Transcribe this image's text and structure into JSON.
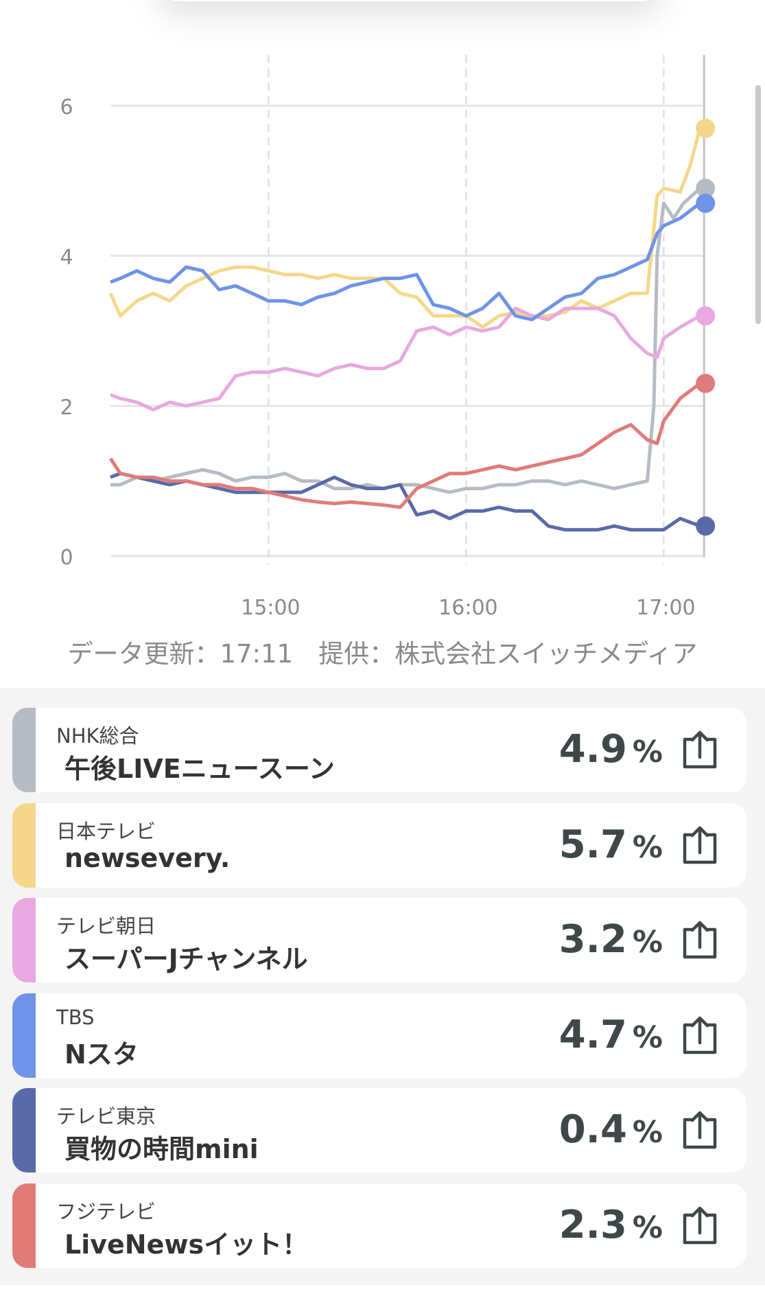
{
  "chart_data": {
    "type": "line",
    "xlabel": "",
    "ylabel": "",
    "ylim": [
      0,
      6
    ],
    "yticks": [
      "0",
      "2",
      "4",
      "6"
    ],
    "xticks": [
      "15:00",
      "16:00",
      "17:00"
    ],
    "xrange": [
      "14:12",
      "17:11"
    ],
    "grid": true,
    "series": [
      {
        "name": "NHK総合",
        "color": "#b7bbc3",
        "points": [
          [
            "14:12",
            0.95
          ],
          [
            "14:15",
            0.95
          ],
          [
            "14:20",
            1.05
          ],
          [
            "14:25",
            1.0
          ],
          [
            "14:30",
            1.05
          ],
          [
            "14:35",
            1.1
          ],
          [
            "14:40",
            1.15
          ],
          [
            "14:45",
            1.1
          ],
          [
            "14:50",
            1.0
          ],
          [
            "14:55",
            1.05
          ],
          [
            "15:00",
            1.05
          ],
          [
            "15:05",
            1.1
          ],
          [
            "15:10",
            1.0
          ],
          [
            "15:15",
            1.0
          ],
          [
            "15:20",
            0.9
          ],
          [
            "15:25",
            0.9
          ],
          [
            "15:30",
            0.95
          ],
          [
            "15:35",
            0.9
          ],
          [
            "15:40",
            0.95
          ],
          [
            "15:45",
            0.95
          ],
          [
            "15:50",
            0.9
          ],
          [
            "15:55",
            0.85
          ],
          [
            "16:00",
            0.9
          ],
          [
            "16:05",
            0.9
          ],
          [
            "16:10",
            0.95
          ],
          [
            "16:15",
            0.95
          ],
          [
            "16:20",
            1.0
          ],
          [
            "16:25",
            1.0
          ],
          [
            "16:30",
            0.95
          ],
          [
            "16:35",
            1.0
          ],
          [
            "16:40",
            0.95
          ],
          [
            "16:45",
            0.9
          ],
          [
            "16:50",
            0.95
          ],
          [
            "16:55",
            1.0
          ],
          [
            "16:57",
            2.0
          ],
          [
            "16:58",
            4.0
          ],
          [
            "17:00",
            4.7
          ],
          [
            "17:03",
            4.5
          ],
          [
            "17:06",
            4.7
          ],
          [
            "17:11",
            4.9
          ]
        ]
      },
      {
        "name": "日本テレビ",
        "color": "#f5d789",
        "points": [
          [
            "14:12",
            3.5
          ],
          [
            "14:15",
            3.2
          ],
          [
            "14:20",
            3.4
          ],
          [
            "14:25",
            3.5
          ],
          [
            "14:30",
            3.4
          ],
          [
            "14:35",
            3.6
          ],
          [
            "14:40",
            3.7
          ],
          [
            "14:45",
            3.8
          ],
          [
            "14:50",
            3.85
          ],
          [
            "14:55",
            3.85
          ],
          [
            "15:00",
            3.8
          ],
          [
            "15:05",
            3.75
          ],
          [
            "15:10",
            3.75
          ],
          [
            "15:15",
            3.7
          ],
          [
            "15:20",
            3.75
          ],
          [
            "15:25",
            3.7
          ],
          [
            "15:30",
            3.7
          ],
          [
            "15:35",
            3.7
          ],
          [
            "15:40",
            3.5
          ],
          [
            "15:45",
            3.45
          ],
          [
            "15:50",
            3.2
          ],
          [
            "15:55",
            3.2
          ],
          [
            "16:00",
            3.2
          ],
          [
            "16:05",
            3.05
          ],
          [
            "16:10",
            3.2
          ],
          [
            "16:15",
            3.25
          ],
          [
            "16:20",
            3.2
          ],
          [
            "16:25",
            3.2
          ],
          [
            "16:30",
            3.25
          ],
          [
            "16:35",
            3.4
          ],
          [
            "16:40",
            3.3
          ],
          [
            "16:45",
            3.4
          ],
          [
            "16:50",
            3.5
          ],
          [
            "16:55",
            3.5
          ],
          [
            "16:58",
            4.8
          ],
          [
            "17:00",
            4.9
          ],
          [
            "17:05",
            4.85
          ],
          [
            "17:08",
            5.2
          ],
          [
            "17:11",
            5.7
          ]
        ]
      },
      {
        "name": "テレビ朝日",
        "color": "#e8a8e0",
        "points": [
          [
            "14:12",
            2.15
          ],
          [
            "14:15",
            2.1
          ],
          [
            "14:20",
            2.05
          ],
          [
            "14:25",
            1.95
          ],
          [
            "14:30",
            2.05
          ],
          [
            "14:35",
            2.0
          ],
          [
            "14:40",
            2.05
          ],
          [
            "14:45",
            2.1
          ],
          [
            "14:50",
            2.4
          ],
          [
            "14:55",
            2.45
          ],
          [
            "15:00",
            2.45
          ],
          [
            "15:05",
            2.5
          ],
          [
            "15:10",
            2.45
          ],
          [
            "15:15",
            2.4
          ],
          [
            "15:20",
            2.5
          ],
          [
            "15:25",
            2.55
          ],
          [
            "15:30",
            2.5
          ],
          [
            "15:35",
            2.5
          ],
          [
            "15:40",
            2.6
          ],
          [
            "15:45",
            3.0
          ],
          [
            "15:50",
            3.05
          ],
          [
            "15:55",
            2.95
          ],
          [
            "16:00",
            3.05
          ],
          [
            "16:05",
            3.0
          ],
          [
            "16:10",
            3.05
          ],
          [
            "16:15",
            3.3
          ],
          [
            "16:20",
            3.2
          ],
          [
            "16:25",
            3.15
          ],
          [
            "16:30",
            3.3
          ],
          [
            "16:35",
            3.3
          ],
          [
            "16:40",
            3.3
          ],
          [
            "16:45",
            3.2
          ],
          [
            "16:50",
            2.9
          ],
          [
            "16:55",
            2.7
          ],
          [
            "16:58",
            2.65
          ],
          [
            "17:00",
            2.9
          ],
          [
            "17:05",
            3.05
          ],
          [
            "17:11",
            3.2
          ]
        ]
      },
      {
        "name": "TBS",
        "color": "#6e93e8",
        "points": [
          [
            "14:12",
            3.65
          ],
          [
            "14:15",
            3.7
          ],
          [
            "14:20",
            3.8
          ],
          [
            "14:25",
            3.7
          ],
          [
            "14:30",
            3.65
          ],
          [
            "14:35",
            3.85
          ],
          [
            "14:40",
            3.8
          ],
          [
            "14:45",
            3.55
          ],
          [
            "14:50",
            3.6
          ],
          [
            "14:55",
            3.5
          ],
          [
            "15:00",
            3.4
          ],
          [
            "15:05",
            3.4
          ],
          [
            "15:10",
            3.35
          ],
          [
            "15:15",
            3.45
          ],
          [
            "15:20",
            3.5
          ],
          [
            "15:25",
            3.6
          ],
          [
            "15:30",
            3.65
          ],
          [
            "15:35",
            3.7
          ],
          [
            "15:40",
            3.7
          ],
          [
            "15:45",
            3.75
          ],
          [
            "15:50",
            3.35
          ],
          [
            "15:55",
            3.3
          ],
          [
            "16:00",
            3.2
          ],
          [
            "16:05",
            3.3
          ],
          [
            "16:10",
            3.5
          ],
          [
            "16:15",
            3.2
          ],
          [
            "16:20",
            3.15
          ],
          [
            "16:25",
            3.3
          ],
          [
            "16:30",
            3.45
          ],
          [
            "16:35",
            3.5
          ],
          [
            "16:40",
            3.7
          ],
          [
            "16:45",
            3.75
          ],
          [
            "16:50",
            3.85
          ],
          [
            "16:55",
            3.95
          ],
          [
            "16:58",
            4.3
          ],
          [
            "17:00",
            4.4
          ],
          [
            "17:05",
            4.5
          ],
          [
            "17:11",
            4.7
          ]
        ]
      },
      {
        "name": "テレビ東京",
        "color": "#5a6aa8",
        "points": [
          [
            "14:12",
            1.05
          ],
          [
            "14:15",
            1.1
          ],
          [
            "14:20",
            1.05
          ],
          [
            "14:25",
            1.0
          ],
          [
            "14:30",
            0.95
          ],
          [
            "14:35",
            1.0
          ],
          [
            "14:40",
            0.95
          ],
          [
            "14:45",
            0.9
          ],
          [
            "14:50",
            0.85
          ],
          [
            "14:55",
            0.85
          ],
          [
            "15:00",
            0.85
          ],
          [
            "15:05",
            0.85
          ],
          [
            "15:10",
            0.85
          ],
          [
            "15:15",
            0.95
          ],
          [
            "15:20",
            1.05
          ],
          [
            "15:25",
            0.95
          ],
          [
            "15:30",
            0.9
          ],
          [
            "15:35",
            0.9
          ],
          [
            "15:40",
            0.95
          ],
          [
            "15:45",
            0.55
          ],
          [
            "15:50",
            0.6
          ],
          [
            "15:55",
            0.5
          ],
          [
            "16:00",
            0.6
          ],
          [
            "16:05",
            0.6
          ],
          [
            "16:10",
            0.65
          ],
          [
            "16:15",
            0.6
          ],
          [
            "16:20",
            0.6
          ],
          [
            "16:25",
            0.4
          ],
          [
            "16:30",
            0.35
          ],
          [
            "16:35",
            0.35
          ],
          [
            "16:40",
            0.35
          ],
          [
            "16:45",
            0.4
          ],
          [
            "16:50",
            0.35
          ],
          [
            "16:55",
            0.35
          ],
          [
            "17:00",
            0.35
          ],
          [
            "17:05",
            0.5
          ],
          [
            "17:11",
            0.4
          ]
        ]
      },
      {
        "name": "フジテレビ",
        "color": "#e07b78",
        "points": [
          [
            "14:12",
            1.3
          ],
          [
            "14:15",
            1.1
          ],
          [
            "14:20",
            1.05
          ],
          [
            "14:25",
            1.05
          ],
          [
            "14:30",
            1.0
          ],
          [
            "14:35",
            1.0
          ],
          [
            "14:40",
            0.95
          ],
          [
            "14:45",
            0.95
          ],
          [
            "14:50",
            0.9
          ],
          [
            "14:55",
            0.9
          ],
          [
            "15:00",
            0.85
          ],
          [
            "15:05",
            0.8
          ],
          [
            "15:10",
            0.75
          ],
          [
            "15:15",
            0.72
          ],
          [
            "15:20",
            0.7
          ],
          [
            "15:25",
            0.72
          ],
          [
            "15:30",
            0.7
          ],
          [
            "15:35",
            0.68
          ],
          [
            "15:40",
            0.65
          ],
          [
            "15:45",
            0.9
          ],
          [
            "15:50",
            1.0
          ],
          [
            "15:55",
            1.1
          ],
          [
            "16:00",
            1.1
          ],
          [
            "16:05",
            1.15
          ],
          [
            "16:10",
            1.2
          ],
          [
            "16:15",
            1.15
          ],
          [
            "16:20",
            1.2
          ],
          [
            "16:25",
            1.25
          ],
          [
            "16:30",
            1.3
          ],
          [
            "16:35",
            1.35
          ],
          [
            "16:40",
            1.5
          ],
          [
            "16:45",
            1.65
          ],
          [
            "16:50",
            1.75
          ],
          [
            "16:55",
            1.55
          ],
          [
            "16:58",
            1.5
          ],
          [
            "17:00",
            1.8
          ],
          [
            "17:05",
            2.1
          ],
          [
            "17:11",
            2.3
          ]
        ]
      }
    ]
  },
  "footer": {
    "note": "データ更新：17:11　提供：株式会社スイッチメディア"
  },
  "cards": [
    {
      "channel": "NHK総合",
      "program": "午後LIVEニュースーン",
      "rating": "4.9",
      "unit": "%",
      "color": "#b7bbc3",
      "icon": "share-icon"
    },
    {
      "channel": "日本テレビ",
      "program": "newsevery.",
      "rating": "5.7",
      "unit": "%",
      "color": "#f5d789",
      "icon": "share-icon"
    },
    {
      "channel": "テレビ朝日",
      "program": "スーパーJチャンネル",
      "rating": "3.2",
      "unit": "%",
      "color": "#e8a8e0",
      "icon": "share-icon"
    },
    {
      "channel": "TBS",
      "program": "Nスタ",
      "rating": "4.7",
      "unit": "%",
      "color": "#6e93e8",
      "icon": "share-icon"
    },
    {
      "channel": "テレビ東京",
      "program": "買物の時間mini",
      "rating": "0.4",
      "unit": "%",
      "color": "#5a6aa8",
      "icon": "share-icon"
    },
    {
      "channel": "フジテレビ",
      "program": "LiveNewsイット！",
      "rating": "2.3",
      "unit": "%",
      "color": "#e07b78",
      "icon": "share-icon"
    }
  ]
}
